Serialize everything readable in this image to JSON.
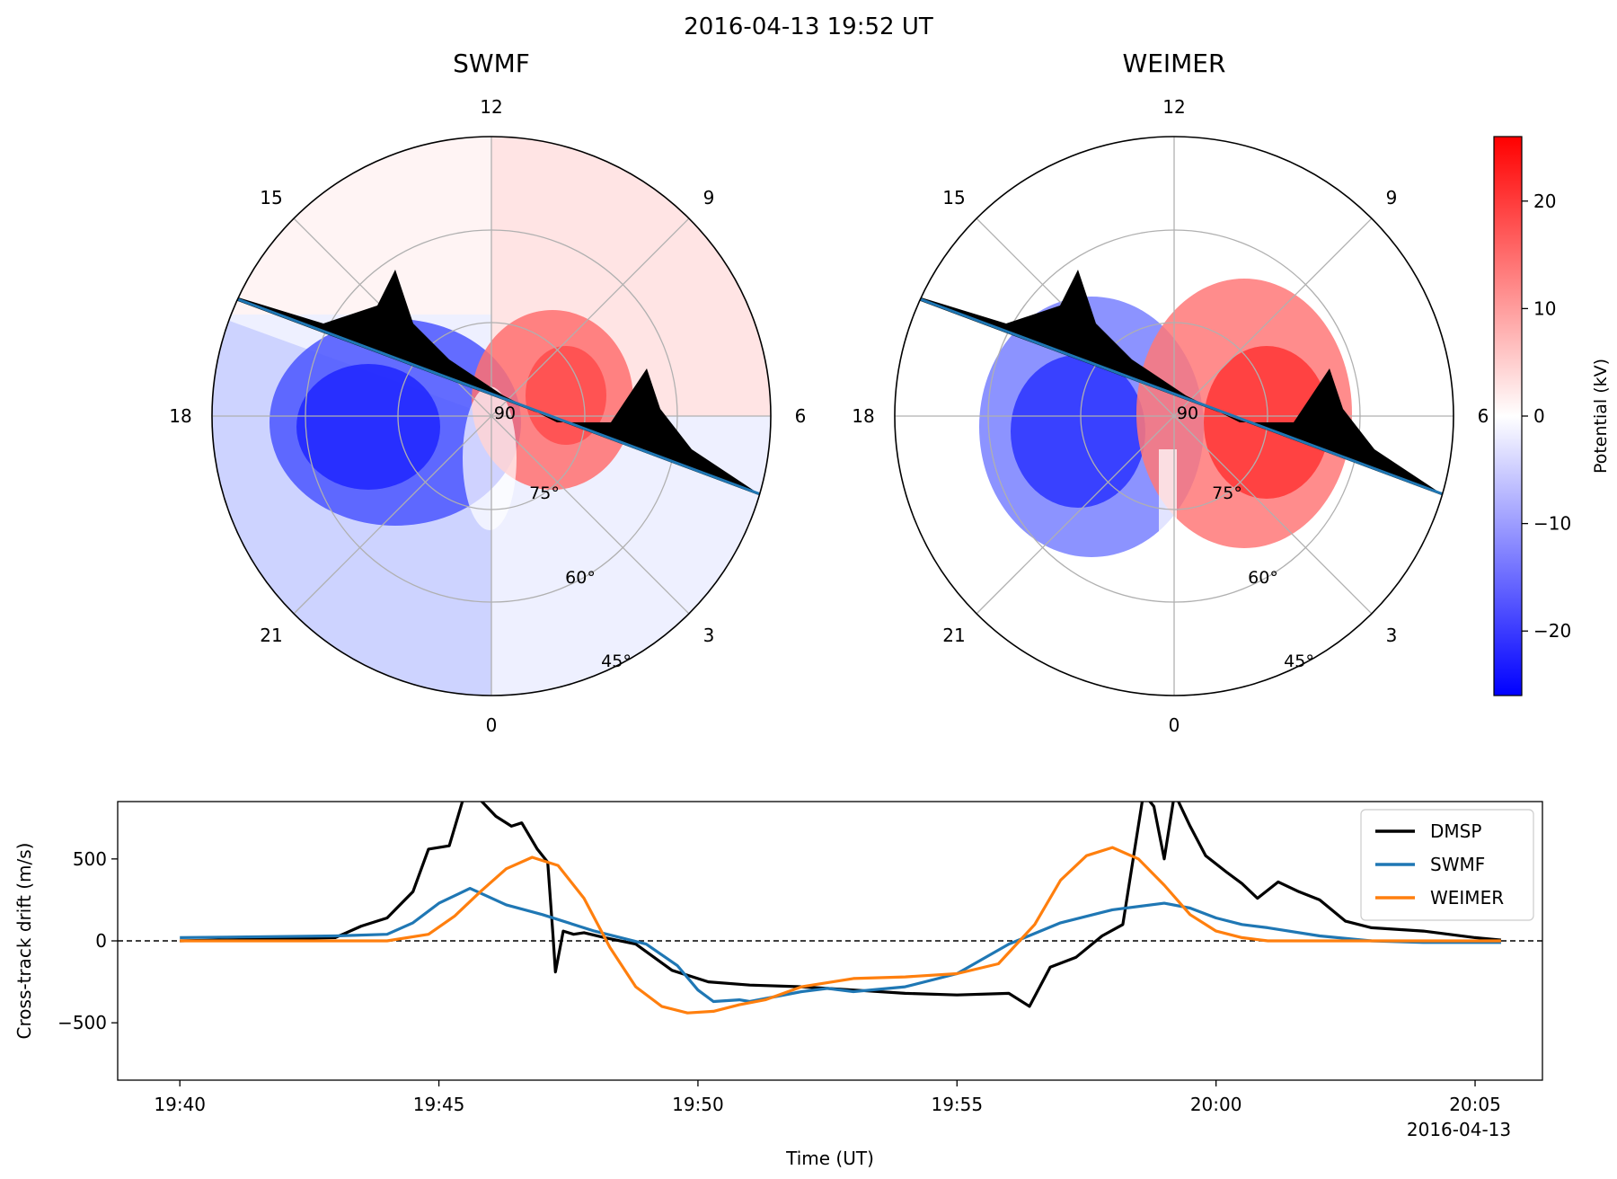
{
  "figure": {
    "title": "2016-04-13 19:52 UT"
  },
  "chart_data": [
    {
      "type": "heatmap",
      "projection": "polar",
      "title": "SWMF",
      "mlt_labels": [
        "12",
        "9",
        "6",
        "3",
        "0",
        "21",
        "18",
        "15"
      ],
      "lat_labels": [
        "75°",
        "60°",
        "45°"
      ],
      "center_lat_label": "90",
      "lat_range": [
        40,
        90
      ],
      "grid": true,
      "potential_extrema_kV": {
        "min": -24,
        "max": 17
      },
      "overlay": "DMSP cross-track drift along satellite track"
    },
    {
      "type": "heatmap",
      "projection": "polar",
      "title": "WEIMER",
      "mlt_labels": [
        "12",
        "9",
        "6",
        "3",
        "0",
        "21",
        "18",
        "15"
      ],
      "lat_labels": [
        "75°",
        "60°",
        "45°"
      ],
      "center_lat_label": "90",
      "lat_range": [
        40,
        90
      ],
      "grid": true,
      "potential_extrema_kV": {
        "min": -23,
        "max": 21
      },
      "overlay": "DMSP cross-track drift along satellite track"
    },
    {
      "type": "colorbar",
      "label": "Potential (kV)",
      "range": [
        -26,
        26
      ],
      "ticks": [
        20,
        10,
        0,
        -10,
        -20
      ],
      "tick_labels": [
        "20",
        "10",
        "0",
        "−10",
        "−20"
      ],
      "colormap": [
        "#0000ff",
        "#ffffff",
        "#ff0000"
      ]
    },
    {
      "type": "line",
      "xlabel": "Time (UT)",
      "ylabel": "Cross-track drift (m/s)",
      "ylim": [
        -850,
        850
      ],
      "xlim_minutes_after_1940": [
        -1.2,
        26.3
      ],
      "x_ticks": [
        "19:40",
        "19:45",
        "19:50",
        "19:55",
        "20:00",
        "20:05"
      ],
      "x_offset_label": "2016-04-13",
      "y_ticks": [
        500,
        0,
        -500
      ],
      "y_tick_labels": [
        "500",
        "0",
        "−500"
      ],
      "reference_line": 0,
      "legend_position": "top-right",
      "series": [
        {
          "name": "DMSP",
          "color": "#000000",
          "x": [
            0,
            3,
            3.5,
            4,
            4.5,
            4.8,
            5.2,
            5.5,
            5.8,
            6.1,
            6.4,
            6.6,
            6.9,
            7.1,
            7.2,
            7.25,
            7.4,
            7.6,
            7.8,
            8.2,
            8.8,
            9.5,
            10.2,
            11,
            12,
            13,
            14,
            15,
            16,
            16.4,
            16.8,
            17.3,
            17.8,
            18.2,
            18.6,
            18.8,
            19,
            19.2,
            19.5,
            19.8,
            20.2,
            20.5,
            20.8,
            21.2,
            21.6,
            22,
            22.5,
            23,
            24,
            25,
            25.5
          ],
          "y": [
            0,
            20,
            90,
            140,
            300,
            560,
            580,
            900,
            860,
            760,
            700,
            720,
            560,
            480,
            40,
            -190,
            60,
            40,
            50,
            20,
            -20,
            -180,
            -250,
            -270,
            -280,
            -300,
            -320,
            -330,
            -320,
            -400,
            -160,
            -100,
            30,
            100,
            900,
            820,
            500,
            900,
            700,
            520,
            420,
            350,
            260,
            360,
            300,
            250,
            120,
            80,
            60,
            20,
            5
          ]
        },
        {
          "name": "SWMF",
          "color": "#1f77b4",
          "x": [
            0,
            3,
            4,
            4.5,
            5,
            5.6,
            6.3,
            7,
            8,
            9,
            9.6,
            10,
            10.3,
            10.8,
            11,
            12,
            12.5,
            13,
            14,
            15,
            16,
            17,
            18,
            19,
            19.5,
            20,
            20.5,
            21,
            22,
            23,
            24,
            25.5
          ],
          "y": [
            20,
            30,
            40,
            110,
            230,
            320,
            220,
            160,
            60,
            -20,
            -150,
            -300,
            -370,
            -360,
            -370,
            -310,
            -290,
            -310,
            -280,
            -200,
            -20,
            110,
            190,
            230,
            200,
            140,
            100,
            80,
            30,
            0,
            -10,
            -10
          ],
          "note": "x in minutes after 19:40"
        },
        {
          "name": "WEIMER",
          "color": "#ff7f0e",
          "x": [
            0,
            4,
            4.8,
            5.3,
            5.8,
            6.3,
            6.8,
            7.3,
            7.8,
            8.3,
            8.8,
            9.3,
            9.8,
            10.3,
            10.8,
            11.3,
            12,
            13,
            14,
            15,
            15.8,
            16.5,
            17,
            17.5,
            18,
            18.5,
            19,
            19.5,
            20,
            20.5,
            21,
            22,
            23,
            25.5
          ],
          "y": [
            0,
            0,
            40,
            150,
            300,
            440,
            510,
            460,
            260,
            -40,
            -280,
            -400,
            -440,
            -430,
            -390,
            -360,
            -280,
            -230,
            -220,
            -200,
            -140,
            100,
            370,
            520,
            570,
            500,
            340,
            160,
            60,
            20,
            0,
            0,
            0,
            0
          ]
        }
      ]
    }
  ]
}
